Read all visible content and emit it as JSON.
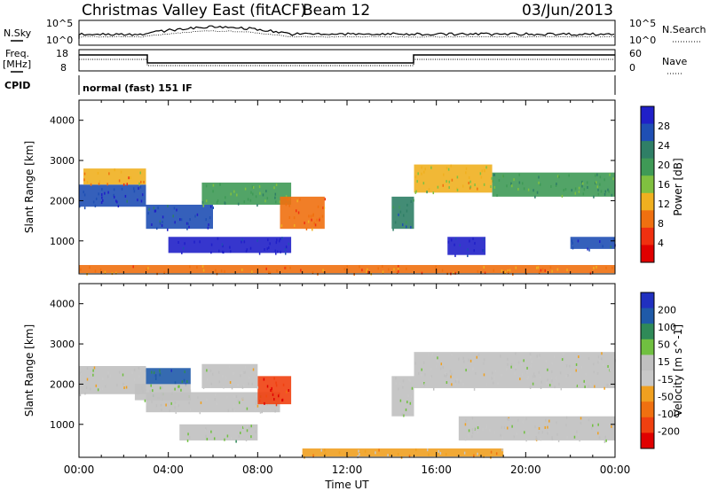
{
  "header": {
    "title": "Christmas Valley East (fitACF)",
    "beam": "Beam 12",
    "date": "03/Jun/2013"
  },
  "noise_panel": {
    "left_label": "N.Sky",
    "right_label": "N.Search",
    "left_ticks": [
      "10^5",
      "10^0"
    ],
    "right_ticks": [
      "10^5",
      "10^0"
    ]
  },
  "freq_panel": {
    "left_label_1": "Freq.",
    "left_label_2": "[MHz]",
    "right_label": "Nave",
    "left_ticks": [
      "18",
      "8"
    ],
    "right_ticks": [
      "60",
      "0"
    ],
    "cpid_label": "CPID",
    "cpid_value": "normal (fast) 151 IF"
  },
  "colors": {
    "power_scale": [
      "#2020c8",
      "#1f4fb4",
      "#2f7f66",
      "#3f9a56",
      "#80c040",
      "#f0b020",
      "#f07010",
      "#f03010",
      "#e00000"
    ],
    "velocity_scale": [
      "#2030c0",
      "#1f5aa8",
      "#2f8a58",
      "#70c040",
      "#c0c0c0",
      "#c8c8c8",
      "#f0a020",
      "#f07010",
      "#f04010",
      "#e00000"
    ]
  },
  "chart_data": [
    {
      "type": "heatmap",
      "title": "",
      "xlabel": "",
      "ylabel": "Slant Range [km]",
      "x_ticks": [
        "00:00",
        "04:00",
        "08:00",
        "12:00",
        "16:00",
        "20:00",
        "00:00"
      ],
      "y_ticks": [
        "1000",
        "2000",
        "3000",
        "4000"
      ],
      "xlim": [
        0,
        24
      ],
      "ylim": [
        180,
        4500
      ],
      "colorbar": {
        "label": "Power [dB]",
        "ticks": [
          "28",
          "24",
          "20",
          "16",
          "12",
          "8",
          "4"
        ],
        "range": [
          0,
          30
        ]
      },
      "regions": [
        {
          "t0": 0.0,
          "t1": 3.0,
          "r0": 1850,
          "r1": 2400,
          "value": 26
        },
        {
          "t0": 0.2,
          "t1": 3.0,
          "r0": 2400,
          "r1": 2800,
          "value": 10
        },
        {
          "t0": 3.0,
          "t1": 6.0,
          "r0": 1300,
          "r1": 1900,
          "value": 26
        },
        {
          "t0": 4.0,
          "t1": 9.5,
          "r0": 700,
          "r1": 1100,
          "value": 29
        },
        {
          "t0": 5.5,
          "t1": 9.5,
          "r0": 1900,
          "r1": 2450,
          "value": 18
        },
        {
          "t0": 9.0,
          "t1": 11.0,
          "r0": 1300,
          "r1": 2100,
          "value": 9
        },
        {
          "t0": 14.0,
          "t1": 15.0,
          "r0": 1300,
          "r1": 2100,
          "value": 22
        },
        {
          "t0": 15.0,
          "t1": 18.5,
          "r0": 2200,
          "r1": 2900,
          "value": 13
        },
        {
          "t0": 16.5,
          "t1": 18.2,
          "r0": 650,
          "r1": 1100,
          "value": 28
        },
        {
          "t0": 18.5,
          "t1": 24.0,
          "r0": 2100,
          "r1": 2700,
          "value": 19
        },
        {
          "t0": 22.0,
          "t1": 24.0,
          "r0": 800,
          "r1": 1100,
          "value": 26
        },
        {
          "t0": 0.0,
          "t1": 24.0,
          "r0": 200,
          "r1": 400,
          "value": 9
        }
      ]
    },
    {
      "type": "heatmap",
      "title": "",
      "xlabel": "Time UT",
      "ylabel": "Slant Range [km]",
      "x_ticks": [
        "00:00",
        "04:00",
        "08:00",
        "12:00",
        "16:00",
        "20:00",
        "00:00"
      ],
      "y_ticks": [
        "1000",
        "2000",
        "3000",
        "4000"
      ],
      "xlim": [
        0,
        24
      ],
      "ylim": [
        180,
        4500
      ],
      "colorbar": {
        "label": "Velocity [m s^-1]",
        "ticks": [
          "200",
          "100",
          "50",
          "15",
          "-15",
          "-50",
          "-100",
          "-200"
        ],
        "range": [
          -250,
          250
        ]
      },
      "regions": [
        {
          "t0": 0.0,
          "t1": 3.0,
          "r0": 1750,
          "r1": 2450,
          "value": 0
        },
        {
          "t0": 3.0,
          "t1": 5.0,
          "r0": 2000,
          "r1": 2400,
          "value": 160
        },
        {
          "t0": 2.5,
          "t1": 5.0,
          "r0": 1600,
          "r1": 2000,
          "value": 40
        },
        {
          "t0": 3.0,
          "t1": 9.0,
          "r0": 1300,
          "r1": 1800,
          "value": 0
        },
        {
          "t0": 4.5,
          "t1": 8.0,
          "r0": 600,
          "r1": 1000,
          "value": 40
        },
        {
          "t0": 8.0,
          "t1": 9.5,
          "r0": 1500,
          "r1": 2200,
          "value": -200
        },
        {
          "t0": 5.5,
          "t1": 8.0,
          "r0": 1900,
          "r1": 2500,
          "value": 0
        },
        {
          "t0": 14.0,
          "t1": 15.0,
          "r0": 1200,
          "r1": 2200,
          "value": 30
        },
        {
          "t0": 15.0,
          "t1": 24.0,
          "r0": 1900,
          "r1": 2800,
          "value": 0
        },
        {
          "t0": 17.0,
          "t1": 24.0,
          "r0": 600,
          "r1": 1200,
          "value": 0
        },
        {
          "t0": 10.0,
          "t1": 19.0,
          "r0": 200,
          "r1": 400,
          "value": -60
        }
      ]
    }
  ]
}
